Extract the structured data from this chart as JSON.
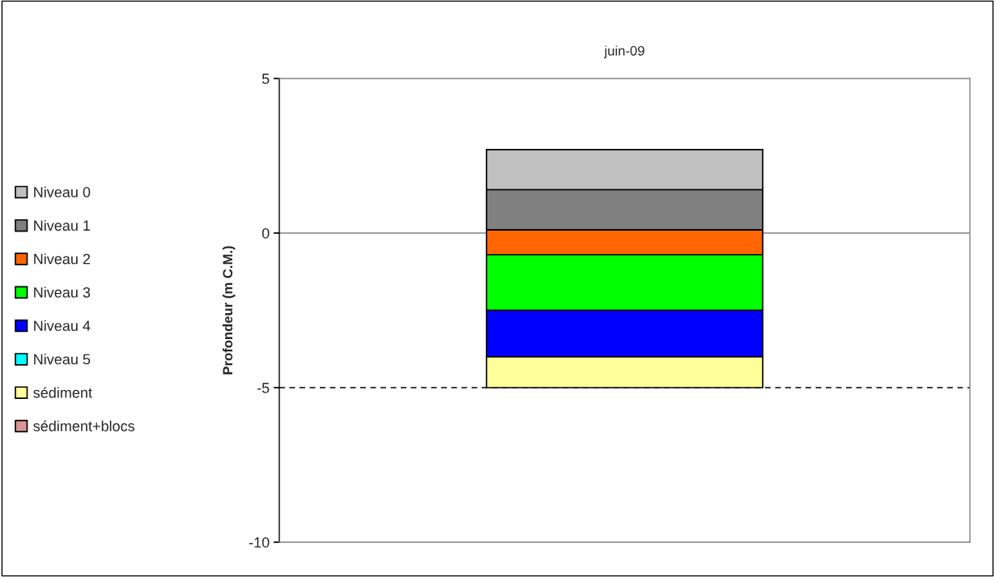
{
  "chart_data": {
    "type": "bar",
    "categories": [
      "juin-09"
    ],
    "ylabel": "Profondeur (m C.M.)",
    "series": [
      {
        "name": "Niveau 0",
        "color": "#c0c0c0",
        "base": [
          1.4
        ],
        "values": [
          1.3
        ]
      },
      {
        "name": "Niveau 1",
        "color": "#808080",
        "base": [
          0.1
        ],
        "values": [
          1.3
        ]
      },
      {
        "name": "Niveau 2",
        "color": "#ff6600",
        "base": [
          -0.7
        ],
        "values": [
          0.8
        ]
      },
      {
        "name": "Niveau 3",
        "color": "#00ff00",
        "base": [
          -2.5
        ],
        "values": [
          1.8
        ]
      },
      {
        "name": "Niveau 4",
        "color": "#0000ff",
        "base": [
          -4
        ],
        "values": [
          1.5
        ]
      },
      {
        "name": "Niveau 5",
        "color": "#00ffff",
        "base": [
          null
        ],
        "values": [
          null
        ]
      },
      {
        "name": "sédiment",
        "color": "#ffff99",
        "base": [
          -5
        ],
        "values": [
          1
        ]
      },
      {
        "name": "sédiment+blocs",
        "color": "#d99694",
        "base": [
          null
        ],
        "values": [
          null
        ]
      }
    ],
    "ylim": [
      -10,
      5
    ],
    "yticks": [
      -10,
      -5,
      0,
      5
    ],
    "ref_lines": [
      {
        "axis": "y",
        "value": 0,
        "color": "#808080",
        "line_style": "solid"
      },
      {
        "axis": "y",
        "value": -5,
        "color": "#000000",
        "line_style": "dashed"
      }
    ],
    "grid": false,
    "legend": "left"
  }
}
